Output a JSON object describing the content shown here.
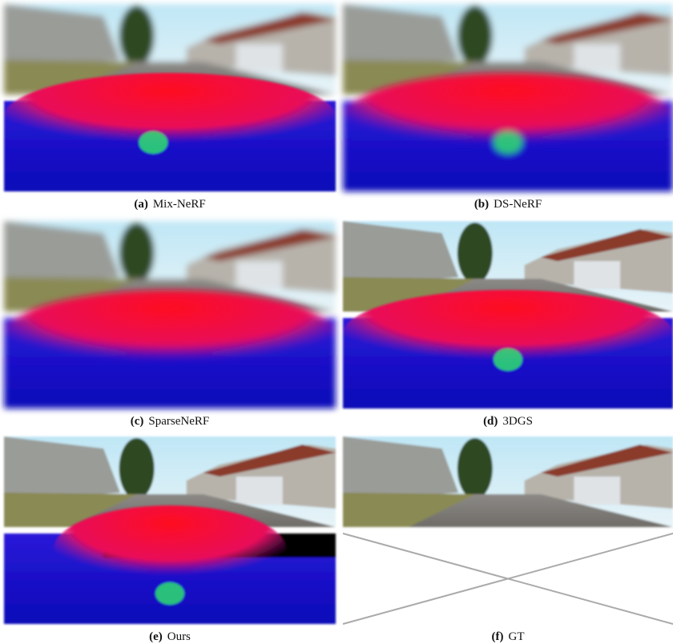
{
  "panels": [
    {
      "label": "(a)",
      "name": "Mix-NeRF"
    },
    {
      "label": "(b)",
      "name": "DS-NeRF"
    },
    {
      "label": "(c)",
      "name": "SparseNeRF"
    },
    {
      "label": "(d)",
      "name": "3DGS"
    },
    {
      "label": "(e)",
      "name": "Ours"
    },
    {
      "label": "(f)",
      "name": "GT"
    }
  ]
}
